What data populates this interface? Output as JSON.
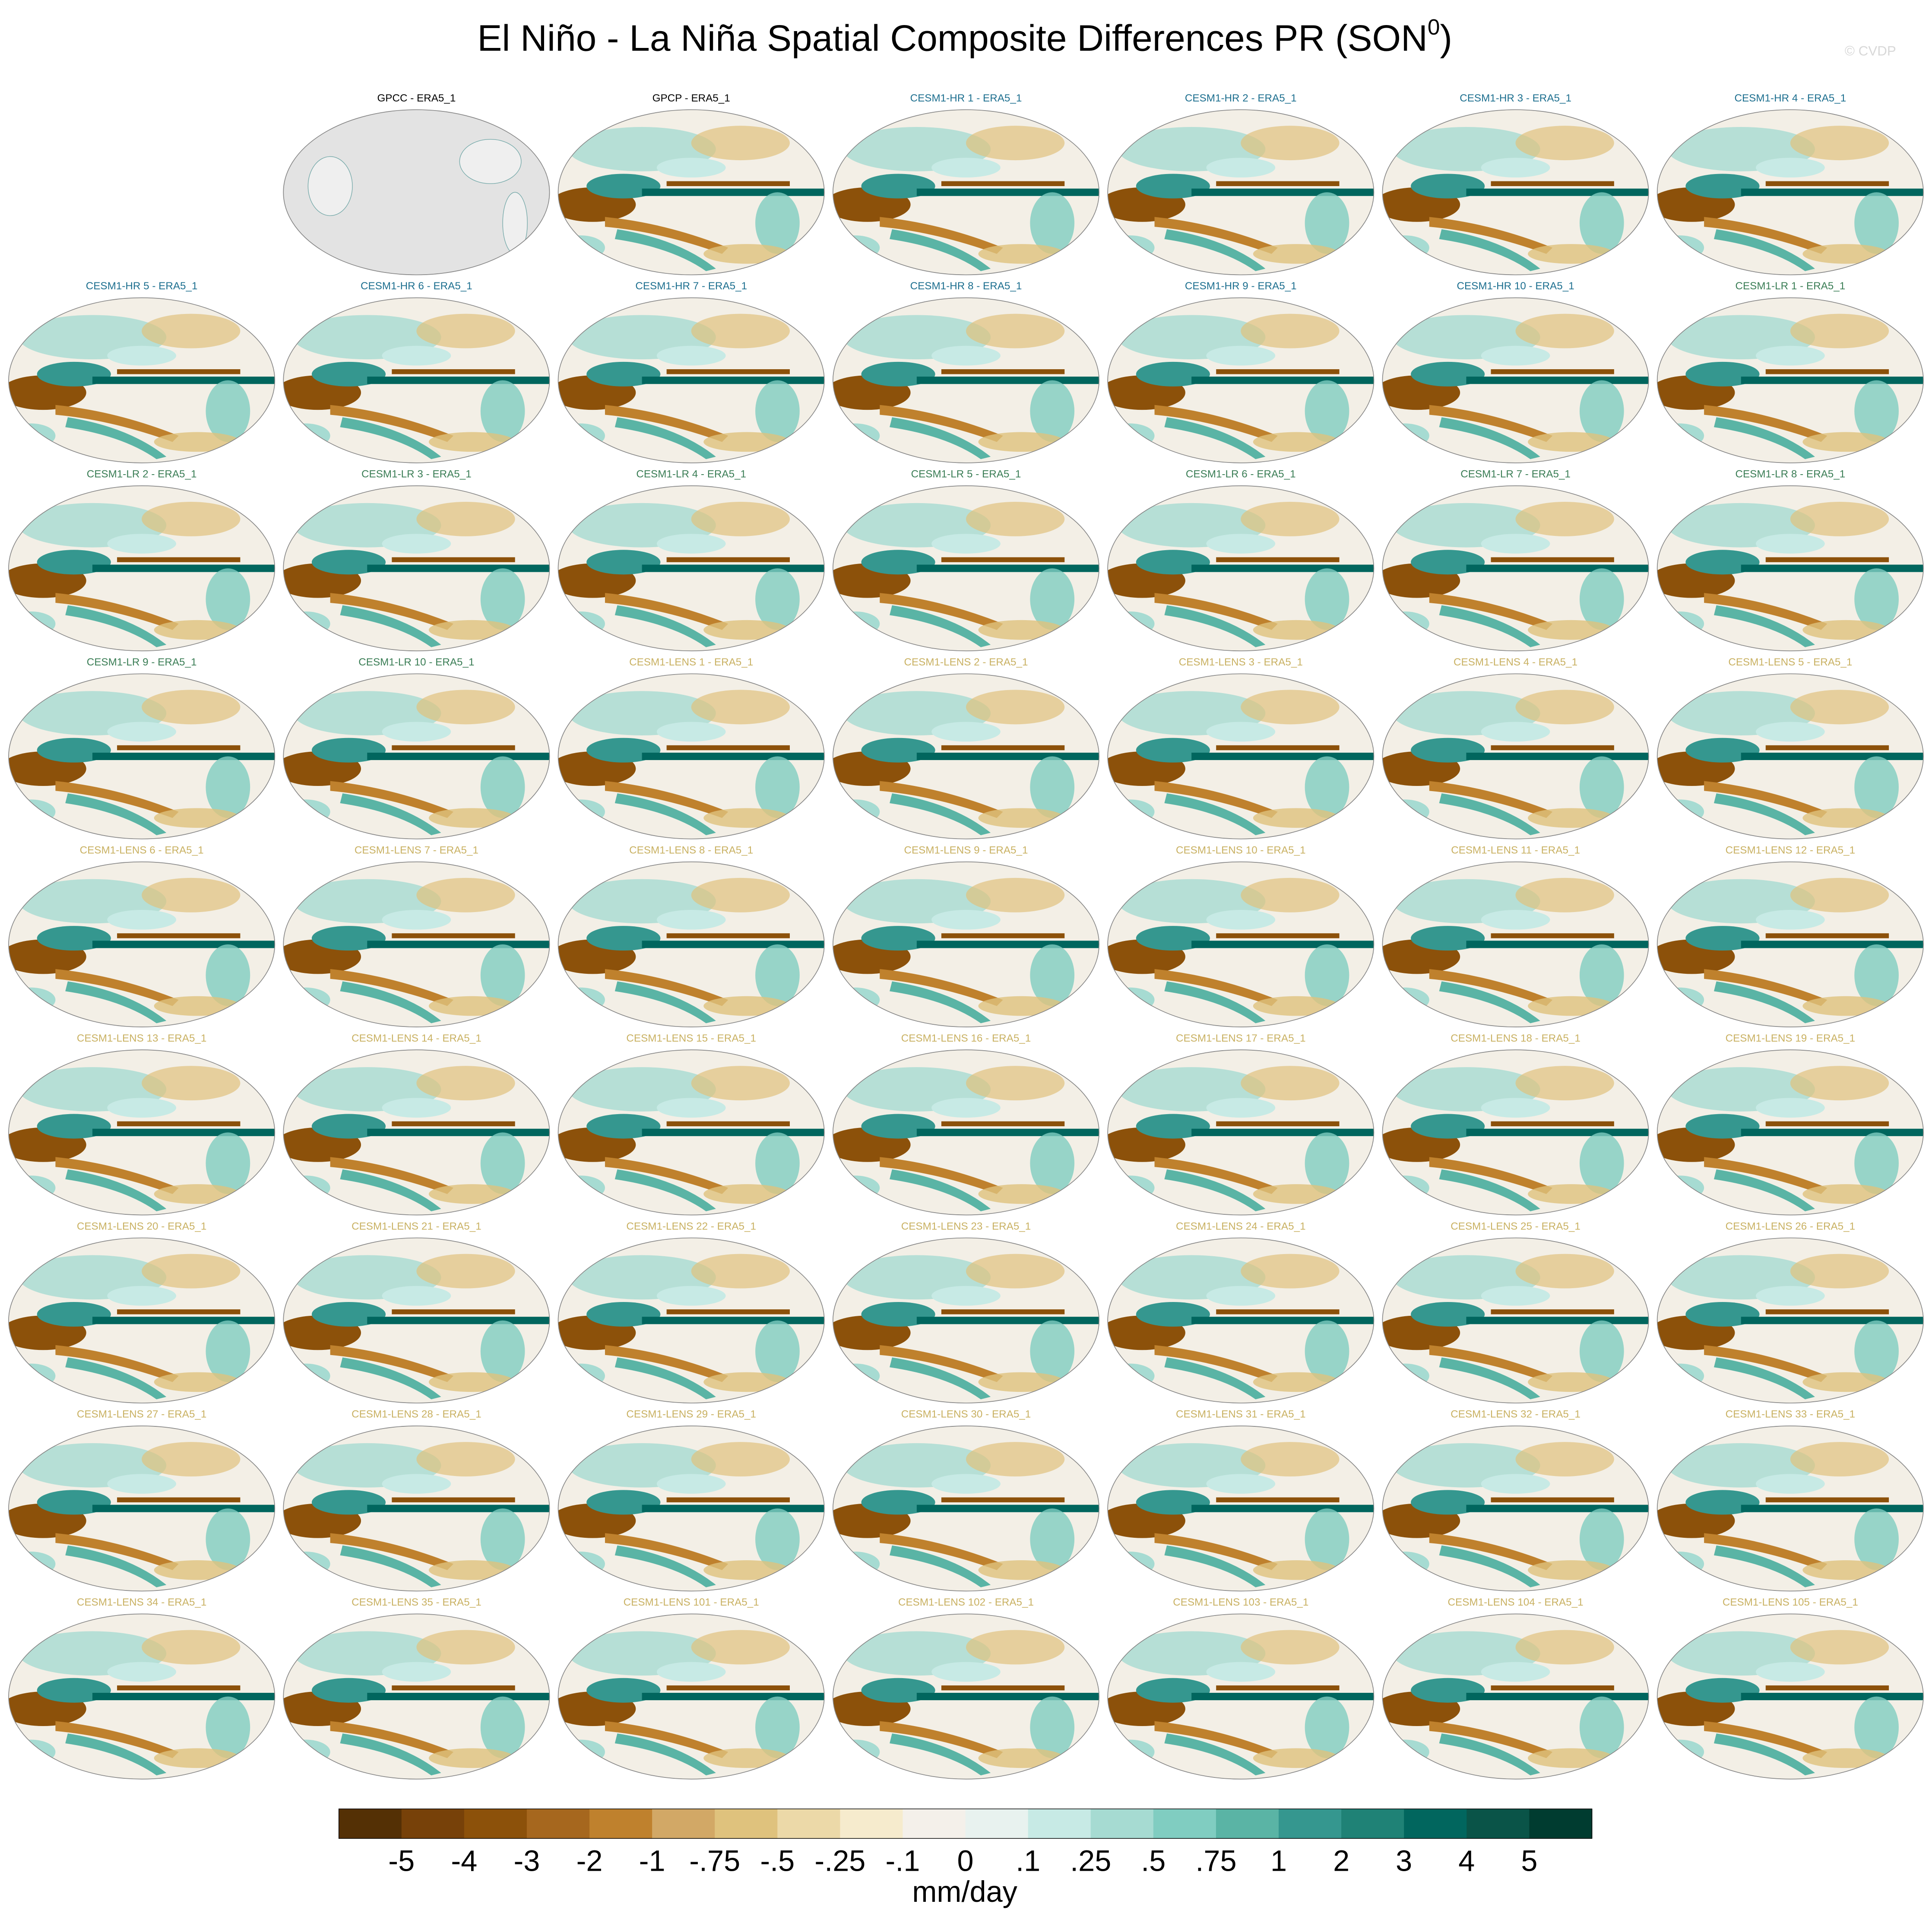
{
  "chart_data": {
    "type": "map-panels",
    "title_parts": [
      "El Niño - La Niña Spatial Composite Differences PR (SON",
      "0",
      ")"
    ],
    "watermark": "© CVDP",
    "panels": [
      {
        "title": "GPCC - ERA5_1",
        "title_color": "#000000"
      },
      {
        "title": "GPCP - ERA5_1",
        "title_color": "#000000"
      },
      {
        "title": "CESM1-HR 1 - ERA5_1",
        "title_color": "#1d6f8f"
      },
      {
        "title": "CESM1-HR 2 - ERA5_1",
        "title_color": "#1d6f8f"
      },
      {
        "title": "CESM1-HR 3 - ERA5_1",
        "title_color": "#1d6f8f"
      },
      {
        "title": "CESM1-HR 4 - ERA5_1",
        "title_color": "#1d6f8f"
      },
      {
        "title": "CESM1-HR 5 - ERA5_1",
        "title_color": "#1d6f8f"
      },
      {
        "title": "CESM1-HR 6 - ERA5_1",
        "title_color": "#1d6f8f"
      },
      {
        "title": "CESM1-HR 7 - ERA5_1",
        "title_color": "#1d6f8f"
      },
      {
        "title": "CESM1-HR 8 - ERA5_1",
        "title_color": "#1d6f8f"
      },
      {
        "title": "CESM1-HR 9 - ERA5_1",
        "title_color": "#1d6f8f"
      },
      {
        "title": "CESM1-HR 10 - ERA5_1",
        "title_color": "#1d6f8f"
      },
      {
        "title": "CESM1-LR 1 - ERA5_1",
        "title_color": "#3a7d55"
      },
      {
        "title": "CESM1-LR 2 - ERA5_1",
        "title_color": "#3a7d55"
      },
      {
        "title": "CESM1-LR 3 - ERA5_1",
        "title_color": "#3a7d55"
      },
      {
        "title": "CESM1-LR 4 - ERA5_1",
        "title_color": "#3a7d55"
      },
      {
        "title": "CESM1-LR 5 - ERA5_1",
        "title_color": "#3a7d55"
      },
      {
        "title": "CESM1-LR 6 - ERA5_1",
        "title_color": "#3a7d55"
      },
      {
        "title": "CESM1-LR 7 - ERA5_1",
        "title_color": "#3a7d55"
      },
      {
        "title": "CESM1-LR 8 - ERA5_1",
        "title_color": "#3a7d55"
      },
      {
        "title": "CESM1-LR 9 - ERA5_1",
        "title_color": "#3a7d55"
      },
      {
        "title": "CESM1-LR 10 - ERA5_1",
        "title_color": "#3a7d55"
      },
      {
        "title": "CESM1-LENS 1 - ERA5_1",
        "title_color": "#c9b162"
      },
      {
        "title": "CESM1-LENS 2 - ERA5_1",
        "title_color": "#c9b162"
      },
      {
        "title": "CESM1-LENS 3 - ERA5_1",
        "title_color": "#c9b162"
      },
      {
        "title": "CESM1-LENS 4 - ERA5_1",
        "title_color": "#c9b162"
      },
      {
        "title": "CESM1-LENS 5 - ERA5_1",
        "title_color": "#c9b162"
      },
      {
        "title": "CESM1-LENS 6 - ERA5_1",
        "title_color": "#c9b162"
      },
      {
        "title": "CESM1-LENS 7 - ERA5_1",
        "title_color": "#c9b162"
      },
      {
        "title": "CESM1-LENS 8 - ERA5_1",
        "title_color": "#c9b162"
      },
      {
        "title": "CESM1-LENS 9 - ERA5_1",
        "title_color": "#c9b162"
      },
      {
        "title": "CESM1-LENS 10 - ERA5_1",
        "title_color": "#c9b162"
      },
      {
        "title": "CESM1-LENS 11 - ERA5_1",
        "title_color": "#c9b162"
      },
      {
        "title": "CESM1-LENS 12 - ERA5_1",
        "title_color": "#c9b162"
      },
      {
        "title": "CESM1-LENS 13 - ERA5_1",
        "title_color": "#c9b162"
      },
      {
        "title": "CESM1-LENS 14 - ERA5_1",
        "title_color": "#c9b162"
      },
      {
        "title": "CESM1-LENS 15 - ERA5_1",
        "title_color": "#c9b162"
      },
      {
        "title": "CESM1-LENS 16 - ERA5_1",
        "title_color": "#c9b162"
      },
      {
        "title": "CESM1-LENS 17 - ERA5_1",
        "title_color": "#c9b162"
      },
      {
        "title": "CESM1-LENS 18 - ERA5_1",
        "title_color": "#c9b162"
      },
      {
        "title": "CESM1-LENS 19 - ERA5_1",
        "title_color": "#c9b162"
      },
      {
        "title": "CESM1-LENS 20 - ERA5_1",
        "title_color": "#c9b162"
      },
      {
        "title": "CESM1-LENS 21 - ERA5_1",
        "title_color": "#c9b162"
      },
      {
        "title": "CESM1-LENS 22 - ERA5_1",
        "title_color": "#c9b162"
      },
      {
        "title": "CESM1-LENS 23 - ERA5_1",
        "title_color": "#c9b162"
      },
      {
        "title": "CESM1-LENS 24 - ERA5_1",
        "title_color": "#c9b162"
      },
      {
        "title": "CESM1-LENS 25 - ERA5_1",
        "title_color": "#c9b162"
      },
      {
        "title": "CESM1-LENS 26 - ERA5_1",
        "title_color": "#c9b162"
      },
      {
        "title": "CESM1-LENS 27 - ERA5_1",
        "title_color": "#c9b162"
      },
      {
        "title": "CESM1-LENS 28 - ERA5_1",
        "title_color": "#c9b162"
      },
      {
        "title": "CESM1-LENS 29 - ERA5_1",
        "title_color": "#c9b162"
      },
      {
        "title": "CESM1-LENS 30 - ERA5_1",
        "title_color": "#c9b162"
      },
      {
        "title": "CESM1-LENS 31 - ERA5_1",
        "title_color": "#c9b162"
      },
      {
        "title": "CESM1-LENS 32 - ERA5_1",
        "title_color": "#c9b162"
      },
      {
        "title": "CESM1-LENS 33 - ERA5_1",
        "title_color": "#c9b162"
      },
      {
        "title": "CESM1-LENS 34 - ERA5_1",
        "title_color": "#c9b162"
      },
      {
        "title": "CESM1-LENS 35 - ERA5_1",
        "title_color": "#c9b162"
      },
      {
        "title": "CESM1-LENS 101 - ERA5_1",
        "title_color": "#c9b162"
      },
      {
        "title": "CESM1-LENS 102 - ERA5_1",
        "title_color": "#c9b162"
      },
      {
        "title": "CESM1-LENS 103 - ERA5_1",
        "title_color": "#c9b162"
      },
      {
        "title": "CESM1-LENS 104 - ERA5_1",
        "title_color": "#c9b162"
      },
      {
        "title": "CESM1-LENS 105 - ERA5_1",
        "title_color": "#c9b162"
      }
    ],
    "colorbar": {
      "label": "mm/day",
      "levels": [
        -5,
        -4,
        -3,
        -2,
        -1,
        {
          "value": -0.75,
          "label": "-.75"
        },
        {
          "value": -0.5,
          "label": "-.5"
        },
        {
          "value": -0.25,
          "label": "-.25"
        },
        {
          "value": -0.1,
          "label": "-.1"
        },
        0,
        {
          "value": 0.1,
          "label": ".1"
        },
        {
          "value": 0.25,
          "label": ".25"
        },
        {
          "value": 0.5,
          "label": ".5"
        },
        {
          "value": 0.75,
          "label": ".75"
        },
        1,
        2,
        3,
        4,
        5
      ],
      "colors": [
        "#543005",
        "#774109",
        "#8c510a",
        "#a6671e",
        "#bf812d",
        "#d2a866",
        "#dfc27d",
        "#ecd9a8",
        "#f6ebcd",
        "#f4f0ea",
        "#e8f2ef",
        "#c7eae5",
        "#a6dbd2",
        "#80cdc1",
        "#5ab4a5",
        "#35978f",
        "#1f8276",
        "#01665e",
        "#0a5448",
        "#003c30"
      ]
    }
  }
}
